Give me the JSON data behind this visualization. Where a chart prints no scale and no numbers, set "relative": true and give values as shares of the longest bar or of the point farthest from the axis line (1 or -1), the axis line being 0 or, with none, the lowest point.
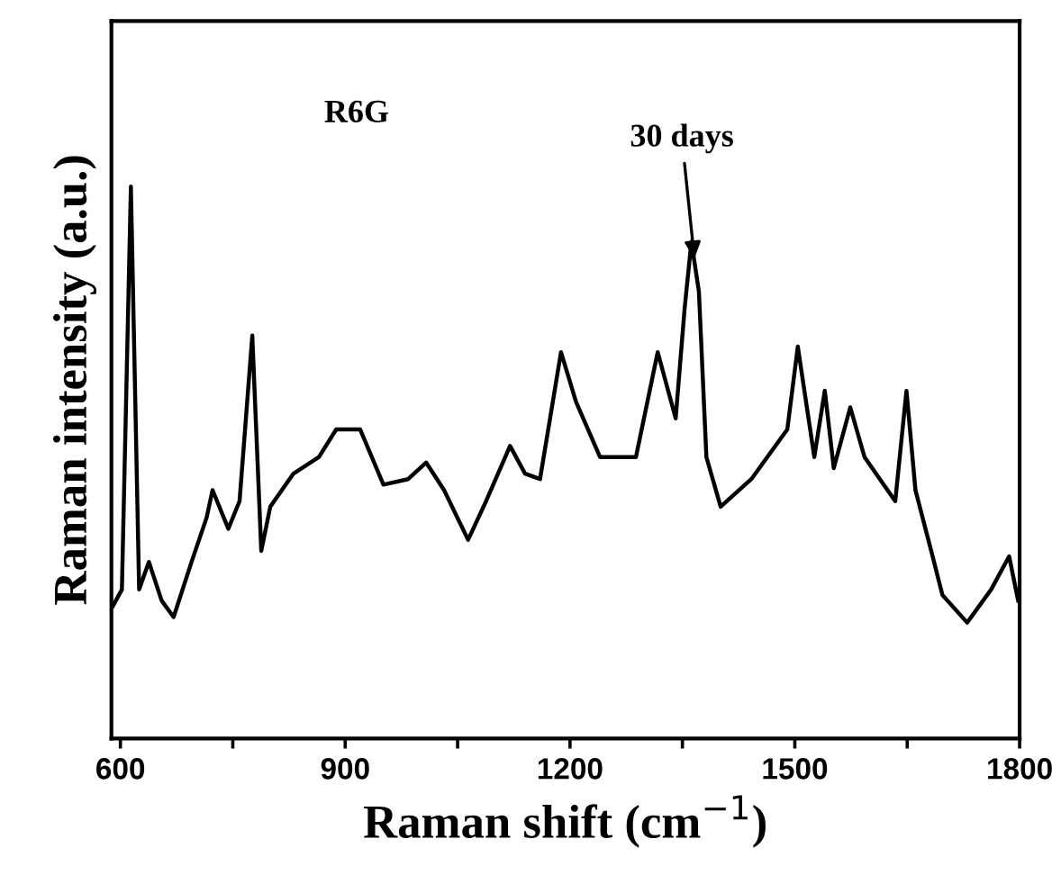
{
  "chart_data": {
    "type": "line",
    "relative": true,
    "xlabel": "Raman shift (cm$^{−1}$)",
    "ylabel": "Raman intensity (a.u.)",
    "xlim": [
      588,
      1800
    ],
    "xticks": [
      600,
      {
        "value": 750,
        "label": null
      },
      900,
      {
        "value": 1050,
        "label": null
      },
      1200,
      {
        "value": 1350,
        "label": null
      },
      1500,
      {
        "value": 1650,
        "label": null
      },
      1800
    ],
    "annotations": [
      "R6G",
      {
        "text": "30 days",
        "x": 1366,
        "y": 0.87
      }
    ],
    "grid": false,
    "legend": false,
    "series": [
      {
        "color": "#000000",
        "x": [
          590,
          602,
          614,
          625,
          638,
          655,
          671,
          695,
          715,
          723,
          744,
          759,
          776,
          788,
          800,
          831,
          865,
          888,
          920,
          951,
          984,
          1008,
          1032,
          1064,
          1088,
          1120,
          1140,
          1160,
          1188,
          1208,
          1240,
          1288,
          1317,
          1341,
          1353,
          1362,
          1372,
          1382,
          1401,
          1442,
          1490,
          1504,
          1526,
          1540,
          1552,
          1574,
          1593,
          1634,
          1649,
          1661,
          1682,
          1697,
          1730,
          1762,
          1786,
          1798
        ],
        "values": [
          0.24,
          0.27,
          1.0,
          0.27,
          0.32,
          0.25,
          0.22,
          0.32,
          0.4,
          0.45,
          0.38,
          0.43,
          0.73,
          0.34,
          0.42,
          0.48,
          0.51,
          0.56,
          0.56,
          0.46,
          0.47,
          0.5,
          0.45,
          0.36,
          0.43,
          0.53,
          0.48,
          0.47,
          0.7,
          0.61,
          0.51,
          0.51,
          0.7,
          0.58,
          0.78,
          0.9,
          0.81,
          0.51,
          0.42,
          0.47,
          0.56,
          0.71,
          0.51,
          0.63,
          0.49,
          0.6,
          0.51,
          0.43,
          0.63,
          0.45,
          0.34,
          0.26,
          0.21,
          0.27,
          0.33,
          0.25
        ]
      }
    ]
  }
}
